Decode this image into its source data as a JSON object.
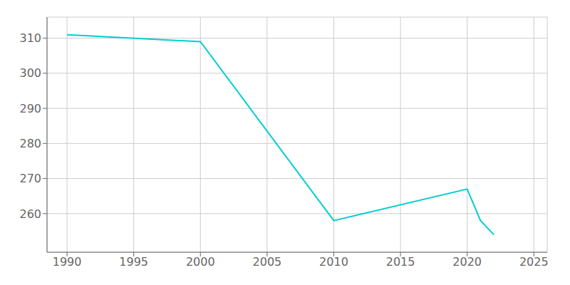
{
  "chart_data": {
    "type": "line",
    "x": [
      1990,
      2000,
      2010,
      2020,
      2021,
      2022
    ],
    "values": [
      311,
      309,
      258,
      267,
      258,
      254
    ],
    "color": "#00CED1",
    "xlim": [
      1988.5,
      2026
    ],
    "ylim": [
      249,
      316
    ],
    "xticks": [
      1990,
      1995,
      2000,
      2005,
      2010,
      2015,
      2020,
      2025
    ],
    "yticks": [
      260,
      270,
      280,
      290,
      300,
      310
    ],
    "grid": true
  }
}
